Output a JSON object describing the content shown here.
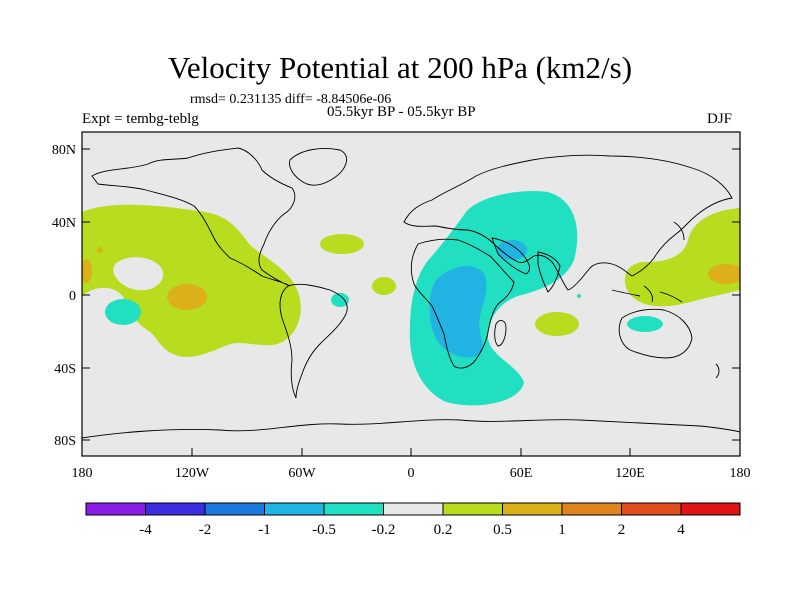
{
  "map": {
    "title": "Velocity Potential at 200 hPa (km2/s)",
    "stats": "rmsd= 0.231135 diff= -8.84506e-06",
    "experiment": "Expt = tembg-teblg",
    "period": "05.5kyr BP - 05.5kyr BP",
    "season": "DJF",
    "lat_ticks": [
      "80N",
      "40N",
      "0",
      "40S",
      "80S"
    ],
    "lon_ticks": [
      "180",
      "120W",
      "60W",
      "0",
      "60E",
      "120E",
      "180"
    ]
  },
  "colorbar": {
    "colors": [
      "#8a1ee6",
      "#3a2ee0",
      "#1a78e0",
      "#21b4e2",
      "#21e0c2",
      "#e8e8e8",
      "#b8dc1e",
      "#dcb01a",
      "#e0841e",
      "#e04e1e",
      "#e01414"
    ],
    "labels": [
      "-4",
      "-2",
      "-1",
      "-0.5",
      "-0.2",
      "0.2",
      "0.5",
      "1",
      "2",
      "4"
    ]
  }
}
